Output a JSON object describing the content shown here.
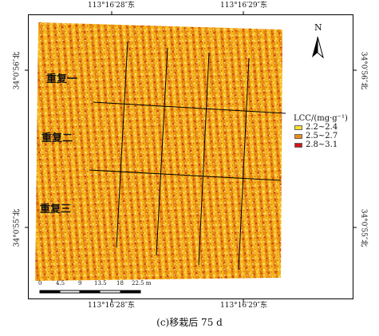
{
  "coordinates": {
    "top": [
      "113°16′28″东",
      "113°16′29″东"
    ],
    "bottom": [
      "113°16′28″东",
      "113°16′29″东"
    ],
    "left": [
      "34°0′56″北",
      "34°0′55″北"
    ],
    "right": [
      "34°0′56″北",
      "34°0′55″北"
    ]
  },
  "replicates": [
    "重复一",
    "重复二",
    "重复三"
  ],
  "north_label": "N",
  "legend": {
    "title": "LCC/(mg·g⁻¹)",
    "items": [
      {
        "label": "2.2~2.4",
        "color": "#f7e12a"
      },
      {
        "label": "2.5~2.7",
        "color": "#f08a16"
      },
      {
        "label": "2.8~3.1",
        "color": "#d4131a"
      }
    ]
  },
  "scale_bar": {
    "ticks": [
      "0",
      "4.5",
      "9",
      "13.5",
      "18",
      "22.5 m"
    ]
  },
  "caption": "(c)移栽后 75 d"
}
